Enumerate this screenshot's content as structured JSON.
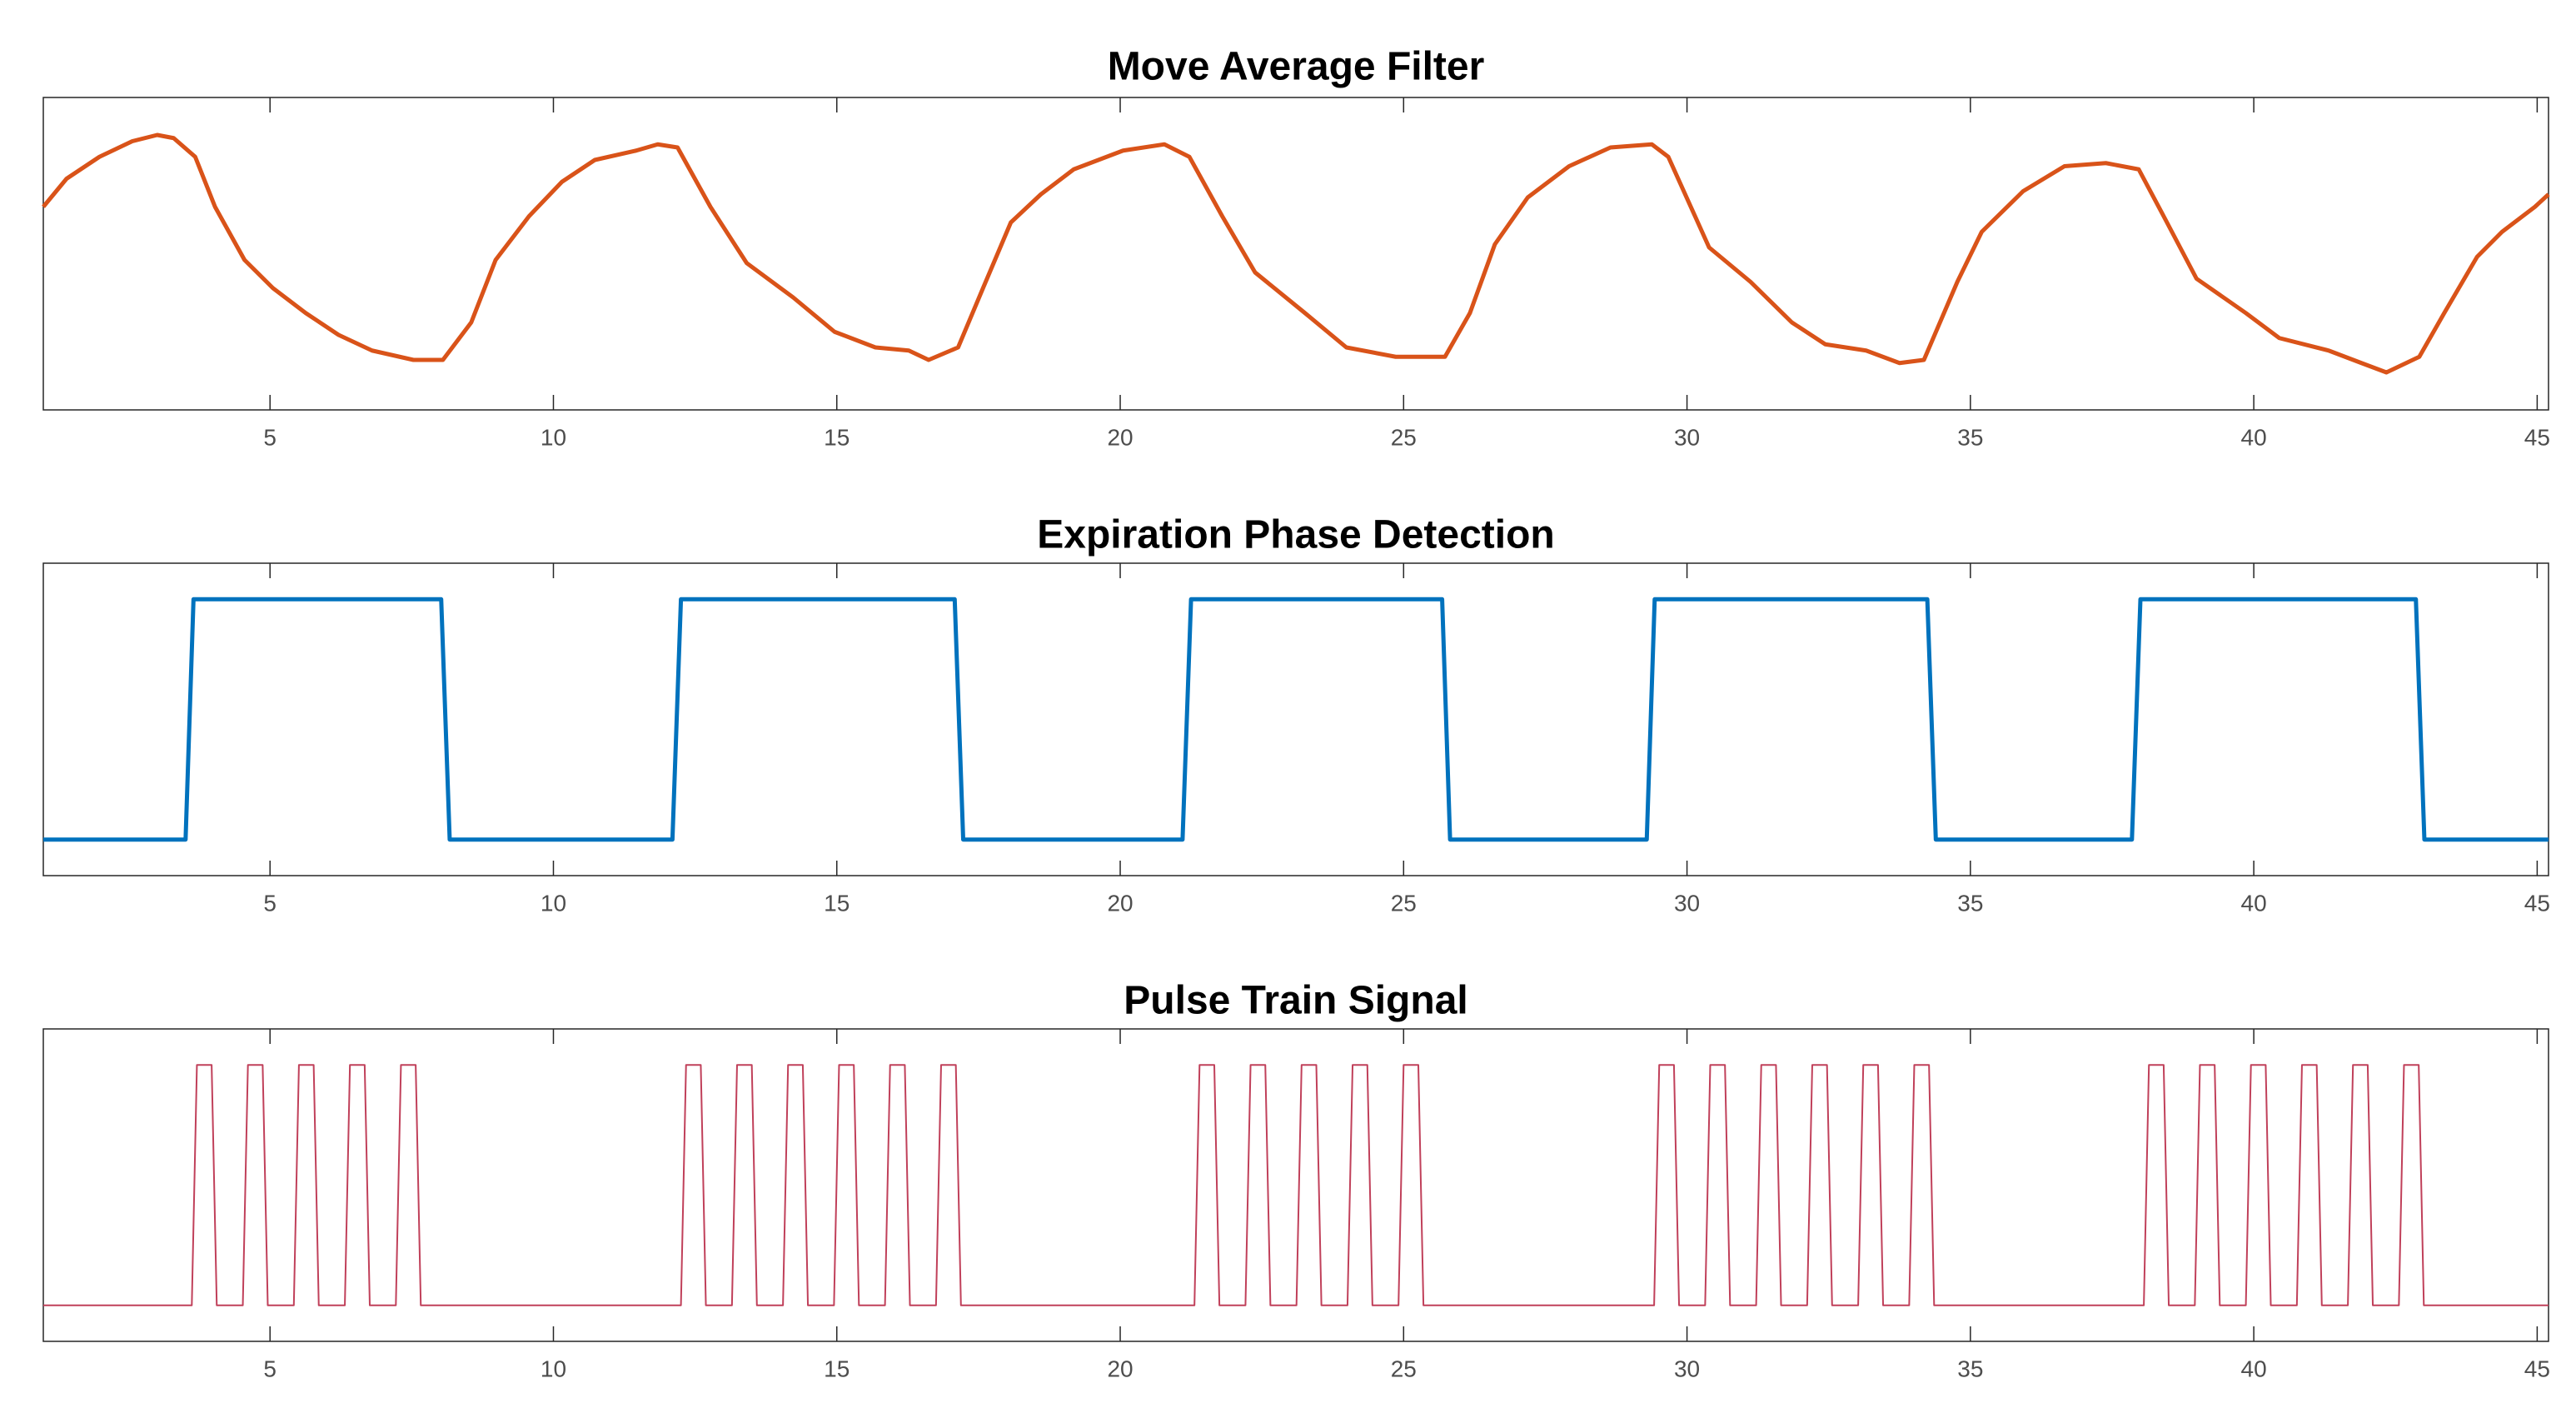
{
  "chart_data": [
    {
      "type": "line",
      "title": "Move Average Filter",
      "x": [
        1.0,
        1.41,
        1.99,
        2.57,
        3.01,
        3.3,
        3.68,
        4.03,
        4.55,
        5.05,
        5.63,
        6.21,
        6.8,
        7.53,
        8.05,
        8.55,
        8.98,
        9.57,
        10.15,
        10.73,
        11.46,
        11.84,
        12.19,
        12.77,
        13.41,
        14.23,
        14.96,
        15.68,
        16.27,
        16.62,
        17.14,
        17.58,
        18.07,
        18.6,
        19.18,
        20.05,
        20.78,
        21.22,
        21.8,
        22.38,
        23.26,
        23.99,
        24.86,
        25.73,
        26.17,
        26.61,
        27.19,
        27.92,
        28.65,
        29.38,
        29.67,
        30.39,
        31.12,
        31.85,
        32.44,
        33.16,
        33.75,
        34.18,
        34.77,
        35.2,
        35.93,
        36.66,
        37.39,
        37.97,
        38.41,
        38.99,
        39.86,
        40.45,
        41.32,
        41.9,
        42.34,
        42.92,
        43.36,
        43.94,
        44.38,
        44.96,
        45.2
      ],
      "series": [
        {
          "color": "#D95319",
          "values": [
            0.65,
            0.74,
            0.81,
            0.86,
            0.88,
            0.87,
            0.81,
            0.65,
            0.48,
            0.39,
            0.31,
            0.24,
            0.19,
            0.16,
            0.16,
            0.28,
            0.48,
            0.62,
            0.73,
            0.8,
            0.83,
            0.85,
            0.84,
            0.65,
            0.47,
            0.36,
            0.25,
            0.2,
            0.19,
            0.16,
            0.2,
            0.39,
            0.6,
            0.69,
            0.77,
            0.83,
            0.85,
            0.81,
            0.62,
            0.44,
            0.31,
            0.2,
            0.17,
            0.17,
            0.31,
            0.53,
            0.68,
            0.78,
            0.84,
            0.85,
            0.81,
            0.52,
            0.41,
            0.28,
            0.21,
            0.19,
            0.15,
            0.16,
            0.41,
            0.57,
            0.7,
            0.78,
            0.79,
            0.77,
            0.62,
            0.42,
            0.31,
            0.23,
            0.19,
            0.15,
            0.12,
            0.17,
            0.31,
            0.49,
            0.57,
            0.65,
            0.69
          ]
        }
      ],
      "xlim": [
        1,
        45.2
      ],
      "ylim": [
        0,
        1
      ],
      "xticks": [
        5,
        10,
        15,
        20,
        25,
        30,
        35,
        40,
        45
      ]
    },
    {
      "type": "line",
      "title": "Expiration Phase Detection",
      "x": [
        1,
        3.51,
        3.65,
        8.02,
        8.17,
        12.1,
        12.25,
        17.08,
        17.23,
        21.1,
        21.25,
        25.68,
        25.82,
        29.29,
        29.43,
        34.24,
        34.39,
        37.85,
        38.0,
        42.86,
        43.01,
        45.2
      ],
      "series": [
        {
          "color": "#0072BD",
          "values": [
            0,
            0,
            1,
            1,
            0,
            0,
            1,
            1,
            0,
            0,
            1,
            1,
            0,
            0,
            1,
            1,
            0,
            0,
            1,
            1,
            0,
            0
          ]
        }
      ],
      "xlim": [
        1,
        45.2
      ],
      "ylim": [
        -0.15,
        1.15
      ],
      "xticks": [
        5,
        10,
        15,
        20,
        25,
        30,
        35,
        40,
        45
      ]
    },
    {
      "type": "line",
      "title": "Pulse Train Signal",
      "x": [
        1,
        3.62,
        3.71,
        3.97,
        4.06,
        4.52,
        4.61,
        4.87,
        4.96,
        5.42,
        5.51,
        5.77,
        5.86,
        6.32,
        6.41,
        6.67,
        6.76,
        7.22,
        7.31,
        7.57,
        7.66,
        12.25,
        12.34,
        12.6,
        12.69,
        13.15,
        13.24,
        13.5,
        13.59,
        14.05,
        14.14,
        14.4,
        14.49,
        14.95,
        15.04,
        15.3,
        15.39,
        15.85,
        15.94,
        16.2,
        16.29,
        16.75,
        16.84,
        17.1,
        17.19,
        21.31,
        21.4,
        21.66,
        21.75,
        22.21,
        22.3,
        22.56,
        22.65,
        23.11,
        23.2,
        23.46,
        23.55,
        24.01,
        24.1,
        24.36,
        24.45,
        24.91,
        25,
        25.26,
        25.35,
        29.42,
        29.51,
        29.77,
        29.86,
        30.32,
        30.41,
        30.67,
        30.76,
        31.22,
        31.31,
        31.57,
        31.66,
        32.12,
        32.21,
        32.47,
        32.56,
        33.02,
        33.11,
        33.37,
        33.46,
        33.92,
        34.01,
        34.27,
        34.36,
        38.06,
        38.15,
        38.41,
        38.5,
        38.96,
        39.05,
        39.31,
        39.4,
        39.86,
        39.95,
        40.21,
        40.3,
        40.76,
        40.85,
        41.11,
        41.2,
        41.66,
        41.75,
        42.01,
        42.1,
        42.56,
        42.65,
        42.91,
        43,
        45.2
      ],
      "series": [
        {
          "color": "#C0405A",
          "values": [
            0,
            0,
            1,
            1,
            0,
            0,
            1,
            1,
            0,
            0,
            1,
            1,
            0,
            0,
            1,
            1,
            0,
            0,
            1,
            1,
            0,
            0,
            1,
            1,
            0,
            0,
            1,
            1,
            0,
            0,
            1,
            1,
            0,
            0,
            1,
            1,
            0,
            0,
            1,
            1,
            0,
            0,
            1,
            1,
            0,
            0,
            1,
            1,
            0,
            0,
            1,
            1,
            0,
            0,
            1,
            1,
            0,
            0,
            1,
            1,
            0,
            0,
            1,
            1,
            0,
            0,
            1,
            1,
            0,
            0,
            1,
            1,
            0,
            0,
            1,
            1,
            0,
            0,
            1,
            1,
            0,
            0,
            1,
            1,
            0,
            0,
            1,
            1,
            0,
            0,
            1,
            1,
            0,
            0,
            1,
            1,
            0,
            0,
            1,
            1,
            0,
            0,
            1,
            1,
            0,
            0,
            1,
            1,
            0,
            0,
            1,
            1,
            0,
            0
          ]
        }
      ],
      "xlim": [
        1,
        45.2
      ],
      "ylim": [
        -0.15,
        1.15
      ],
      "xticks": [
        5,
        10,
        15,
        20,
        25,
        30,
        35,
        40,
        45
      ]
    }
  ]
}
